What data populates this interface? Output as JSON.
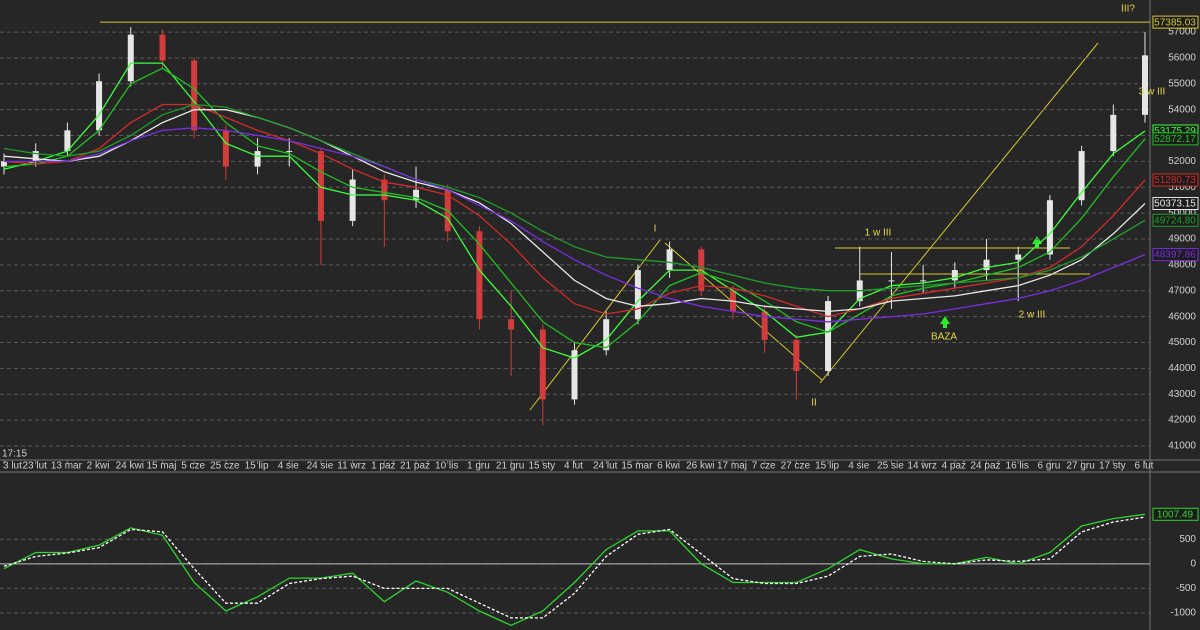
{
  "time_label": "17:15",
  "chart_data": [
    {
      "type": "candlestick",
      "categories": [
        "3 lut",
        "23 lut",
        "13 mar",
        "2 kwi",
        "24 kwi",
        "15 maj",
        "5 cze",
        "25 cze",
        "15 lip",
        "4 sie",
        "24 sie",
        "11 wrz",
        "1 paź",
        "21 paź",
        "10 lis",
        "1 gru",
        "21 gru",
        "15 sty",
        "4 lut",
        "24 lut",
        "15 mar",
        "6 kwi",
        "26 kwi",
        "17 maj",
        "7 cze",
        "27 cze",
        "15 lip",
        "4 sie",
        "25 sie",
        "14 wrz",
        "4 paź",
        "24 paź",
        "16 lis",
        "6 gru",
        "27 gru",
        "17 sty",
        "6 lut"
      ],
      "open": [
        51800,
        52000,
        52400,
        53200,
        55100,
        56900,
        55900,
        53200,
        51800,
        52400,
        52400,
        49700,
        51300,
        50500,
        50900,
        49300,
        45900,
        45500,
        42800,
        44700,
        45900,
        47800,
        48600,
        47000,
        46200,
        45100,
        43900,
        46600,
        47400,
        47400,
        47400,
        47800,
        48200,
        48400,
        50500,
        52400,
        53800
      ],
      "high": [
        52300,
        52700,
        53500,
        55400,
        57200,
        57100,
        56000,
        53400,
        52900,
        52900,
        52500,
        51700,
        51500,
        51800,
        51100,
        49500,
        47000,
        45700,
        45000,
        46200,
        48000,
        48900,
        48700,
        47200,
        46400,
        45300,
        46800,
        48700,
        48500,
        48000,
        48100,
        49000,
        48700,
        50700,
        52600,
        54200,
        57000
      ],
      "low": [
        51500,
        51800,
        52200,
        53000,
        54900,
        55600,
        52900,
        51300,
        51500,
        51800,
        48000,
        49500,
        48700,
        50200,
        48900,
        45500,
        43700,
        41800,
        42600,
        44500,
        45700,
        47500,
        46800,
        45900,
        44600,
        42800,
        43700,
        46400,
        46300,
        46900,
        47100,
        47400,
        46600,
        48200,
        50300,
        52200,
        53500
      ],
      "close": [
        52000,
        52400,
        53200,
        55100,
        56900,
        55900,
        53200,
        51800,
        52400,
        52400,
        49700,
        51300,
        50500,
        50900,
        49300,
        45900,
        45500,
        42800,
        44700,
        45900,
        47800,
        48600,
        47000,
        46200,
        45100,
        43900,
        46600,
        47400,
        47400,
        47400,
        47800,
        48200,
        48400,
        50500,
        52400,
        53800,
        56100
      ],
      "up_color": "#e6e6e6",
      "down_color": "#d23c3c",
      "series": [
        {
          "color": "#3cff3c",
          "values": [
            51700,
            52000,
            52400,
            53800,
            55800,
            55800,
            54300,
            52700,
            52200,
            52200,
            51000,
            50700,
            50700,
            50500,
            49800,
            47800,
            46400,
            44800,
            44400,
            45100,
            46600,
            47800,
            47800,
            47000,
            46200,
            45200,
            45400,
            46700,
            47200,
            47300,
            47500,
            47900,
            48100,
            49200,
            50800,
            52300,
            53175.29
          ]
        },
        {
          "color": "#22c022",
          "values": [
            51800,
            51900,
            52200,
            53200,
            55000,
            55600,
            54800,
            53500,
            52600,
            52300,
            51600,
            51000,
            50800,
            50600,
            50100,
            48800,
            47300,
            45800,
            45000,
            44800,
            45800,
            47200,
            47700,
            47300,
            46600,
            45800,
            45400,
            46100,
            46800,
            47100,
            47300,
            47600,
            47900,
            48500,
            49800,
            51400,
            52872.17
          ]
        },
        {
          "color": "#d42a2a",
          "values": [
            52000,
            51900,
            52000,
            52500,
            53500,
            54200,
            54200,
            53700,
            53200,
            52800,
            52300,
            51700,
            51200,
            51000,
            50700,
            49900,
            48800,
            47500,
            46500,
            46100,
            46300,
            46900,
            47200,
            47100,
            46800,
            46400,
            46000,
            46300,
            46700,
            46900,
            47100,
            47300,
            47500,
            47900,
            48700,
            49900,
            51280.73
          ]
        },
        {
          "color": "#e8e8e8",
          "values": [
            52200,
            52100,
            52000,
            52200,
            52800,
            53500,
            54000,
            54000,
            53700,
            53300,
            52800,
            52200,
            51600,
            51200,
            50900,
            50400,
            49600,
            48500,
            47400,
            46700,
            46400,
            46500,
            46700,
            46600,
            46400,
            46300,
            46200,
            46300,
            46600,
            46700,
            46800,
            47000,
            47200,
            47600,
            48200,
            49200,
            50373.15
          ]
        },
        {
          "color": "#1f9e2a",
          "values": [
            52500,
            52300,
            52200,
            52400,
            53000,
            53800,
            54200,
            54100,
            53700,
            53300,
            52800,
            52300,
            51800,
            51300,
            51000,
            50600,
            50000,
            49300,
            48700,
            48300,
            48200,
            48100,
            47900,
            47600,
            47300,
            47100,
            47000,
            47000,
            47100,
            47200,
            47300,
            47400,
            47500,
            47800,
            48300,
            49000,
            49724.8
          ],
          "value_labels": [
            null,
            null,
            null,
            null,
            null,
            null,
            null,
            null,
            null,
            null,
            null,
            null,
            null,
            null,
            null,
            null,
            null,
            null,
            null,
            null,
            null,
            null,
            null,
            null,
            null,
            null,
            null,
            null,
            null,
            null,
            null,
            null,
            null,
            null,
            null,
            null,
            "49724.80"
          ]
        },
        {
          "color": "#7a2ee0",
          "values": [
            52000,
            52000,
            52000,
            52300,
            52800,
            53200,
            53300,
            53200,
            53000,
            52800,
            52500,
            52200,
            51800,
            51300,
            50900,
            50300,
            49700,
            48900,
            48200,
            47600,
            47100,
            46700,
            46400,
            46200,
            46000,
            45900,
            45800,
            45900,
            46000,
            46100,
            46300,
            46500,
            46700,
            47000,
            47400,
            47900,
            48397.86
          ]
        }
      ],
      "hlines": [
        {
          "value": 57385.03,
          "color": "#d8c832"
        }
      ],
      "annotations": [
        "I",
        "II",
        "1 w III",
        "2 w III",
        "BAZA",
        "3 w III",
        "III?"
      ],
      "ylim": [
        40650,
        58240
      ],
      "yticks": [
        41000,
        42000,
        43000,
        44000,
        45000,
        46000,
        47000,
        48000,
        49000,
        50000,
        51000,
        52000,
        53000,
        54000,
        55000,
        56000,
        57000
      ],
      "grid": true
    },
    {
      "type": "line",
      "series": [
        {
          "color": "#2ed62e",
          "values": [
            -100,
            230,
            230,
            380,
            730,
            580,
            -380,
            -960,
            -670,
            -290,
            -290,
            -190,
            -770,
            -350,
            -580,
            -960,
            -1250,
            -960,
            -380,
            290,
            670,
            670,
            0,
            -380,
            -380,
            -380,
            -100,
            290,
            100,
            0,
            0,
            130,
            0,
            230,
            770,
            920,
            1007.49
          ]
        },
        {
          "color": "#ffffff",
          "dash": true,
          "values": [
            -50,
            150,
            220,
            330,
            700,
            650,
            -100,
            -800,
            -800,
            -400,
            -300,
            -250,
            -500,
            -500,
            -500,
            -800,
            -1100,
            -1100,
            -600,
            150,
            600,
            700,
            200,
            -300,
            -400,
            -400,
            -250,
            150,
            200,
            50,
            0,
            80,
            50,
            100,
            650,
            850,
            950
          ]
        }
      ],
      "ylim": [
        -1346,
        1827
      ],
      "yticks": [
        -1000,
        -500,
        0,
        500
      ],
      "grid": true
    }
  ]
}
